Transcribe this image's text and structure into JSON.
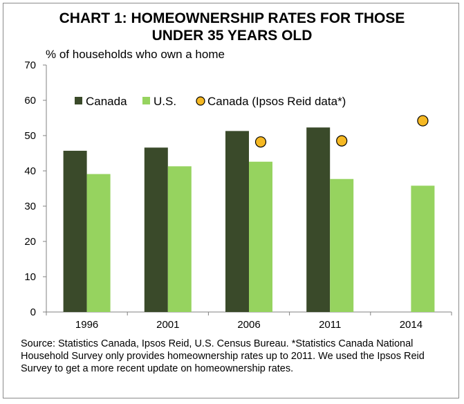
{
  "title_line1": "CHART 1: HOMEOWNERSHIP RATES FOR THOSE",
  "title_line2": "UNDER 35 YEARS OLD",
  "source_note": "Source: Statistics Canada, Ipsos Reid, U.S. Census Bureau. *Statistics Canada National Household Survey only provides homeownership rates up to 2011.  We used the Ipsos Reid Survey to get a more recent update on homeownership rates.",
  "chart_data": {
    "type": "bar",
    "title": "CHART 1: HOMEOWNERSHIP RATES FOR THOSE UNDER 35 YEARS OLD",
    "ylabel": "% of households who own a home",
    "xlabel": "",
    "ylim": [
      0,
      70
    ],
    "yticks": [
      0,
      10,
      20,
      30,
      40,
      50,
      60,
      70
    ],
    "categories": [
      "1996",
      "2001",
      "2006",
      "2011",
      "2014"
    ],
    "series": [
      {
        "name": "Canada",
        "kind": "bar",
        "color": "#3a4a2a",
        "values": [
          45.7,
          46.6,
          51.3,
          52.3,
          null
        ]
      },
      {
        "name": "U.S.",
        "kind": "bar",
        "color": "#96d35f",
        "values": [
          39.1,
          41.3,
          42.6,
          37.7,
          35.8
        ]
      },
      {
        "name": "Canada (Ipsos Reid data*)",
        "kind": "marker",
        "color": "#f5b823",
        "values": [
          null,
          null,
          48.2,
          48.5,
          54.2
        ]
      }
    ],
    "legend_position": "top-left",
    "grid": false
  }
}
